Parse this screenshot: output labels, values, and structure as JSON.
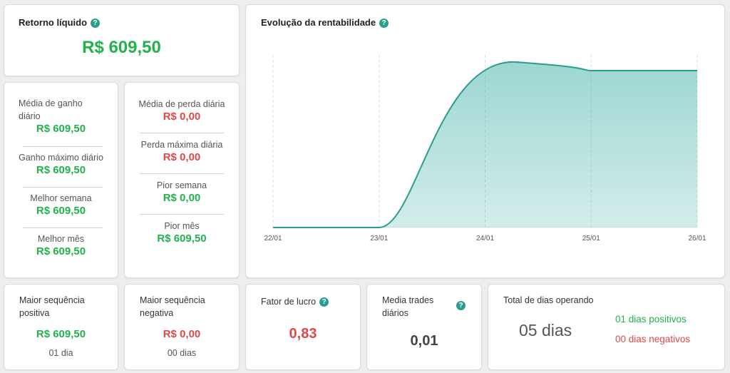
{
  "retorno": {
    "title": "Retorno líquido",
    "value": "R$ 609,50"
  },
  "ganhos": [
    {
      "label": "Média de ganho diário",
      "value": "R$ 609,50"
    },
    {
      "label": "Ganho máximo diário",
      "value": "R$ 609,50"
    },
    {
      "label": "Melhor semana",
      "value": "R$ 609,50"
    },
    {
      "label": "Melhor mês",
      "value": "R$ 609,50"
    }
  ],
  "perdas": [
    {
      "label": "Média de perda diária",
      "value": "R$ 0,00"
    },
    {
      "label": "Perda máxima diária",
      "value": "R$ 0,00"
    },
    {
      "label": "Pior semana",
      "value": "R$ 0,00"
    },
    {
      "label": "Pior mês",
      "value": "R$ 609,50"
    }
  ],
  "chart": {
    "title": "Evolução da rentabilidade"
  },
  "chart_data": {
    "type": "area",
    "title": "Evolução da rentabilidade",
    "x": [
      "22/01",
      "23/01",
      "24/01",
      "25/01",
      "26/01"
    ],
    "values": [
      0,
      0,
      609.5,
      609.5,
      609.5
    ],
    "xlabel": "",
    "ylabel": "",
    "grid": "vertical-dashed",
    "color": "#4db6ac"
  },
  "seq_pos": {
    "title": "Maior sequência positiva",
    "value": "R$ 609,50",
    "sub": "01 dia"
  },
  "seq_neg": {
    "title": "Maior sequência negativa",
    "value": "R$ 0,00",
    "sub": "00 dias"
  },
  "fator": {
    "title": "Fator de lucro",
    "value": "0,83"
  },
  "media_trades": {
    "title": "Media trades diários",
    "value": "0,01"
  },
  "dias": {
    "title": "Total de dias operando",
    "value": "05 dias",
    "positivos": "01 dias positivos",
    "negativos": "00 dias negativos"
  },
  "colors": {
    "green": "#22b14c",
    "red": "#e04848",
    "teal": "#2a9d8f"
  }
}
